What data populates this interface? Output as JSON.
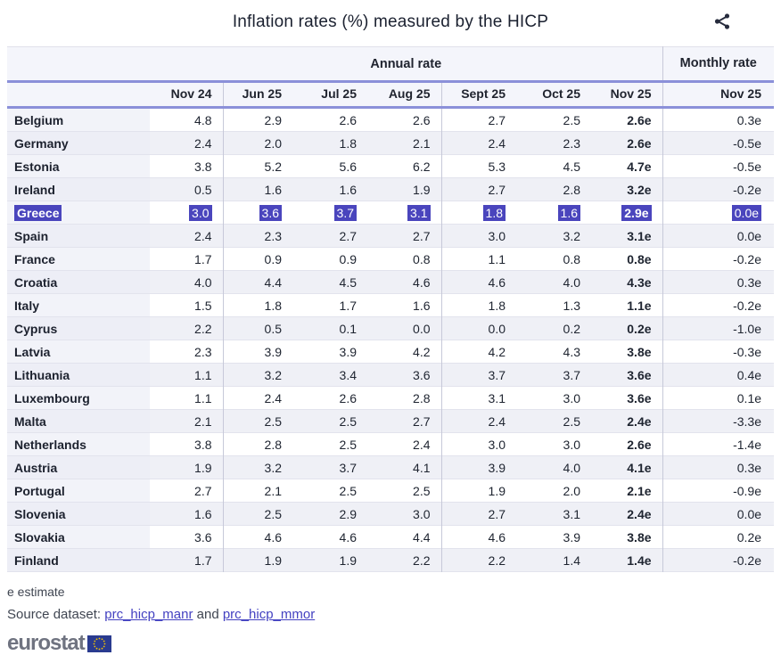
{
  "title": "Inflation rates (%) measured by the HICP",
  "table": {
    "group_annual": "Annual rate",
    "group_monthly": "Monthly rate",
    "columns": [
      "Nov 24",
      "Jun 25",
      "Jul 25",
      "Aug 25",
      "Sept 25",
      "Oct 25",
      "Nov 25"
    ],
    "monthly_column": "Nov 25",
    "rows": [
      {
        "country": "Belgium",
        "values": [
          "4.8",
          "2.9",
          "2.6",
          "2.6",
          "2.7",
          "2.5",
          "2.6e"
        ],
        "monthly": "0.3e",
        "highlighted": false
      },
      {
        "country": "Germany",
        "values": [
          "2.4",
          "2.0",
          "1.8",
          "2.1",
          "2.4",
          "2.3",
          "2.6e"
        ],
        "monthly": "-0.5e",
        "highlighted": false
      },
      {
        "country": "Estonia",
        "values": [
          "3.8",
          "5.2",
          "5.6",
          "6.2",
          "5.3",
          "4.5",
          "4.7e"
        ],
        "monthly": "-0.5e",
        "highlighted": false
      },
      {
        "country": "Ireland",
        "values": [
          "0.5",
          "1.6",
          "1.6",
          "1.9",
          "2.7",
          "2.8",
          "3.2e"
        ],
        "monthly": "-0.2e",
        "highlighted": false
      },
      {
        "country": "Greece",
        "values": [
          "3.0",
          "3.6",
          "3.7",
          "3.1",
          "1.8",
          "1.6",
          "2.9e"
        ],
        "monthly": "0.0e",
        "highlighted": true
      },
      {
        "country": "Spain",
        "values": [
          "2.4",
          "2.3",
          "2.7",
          "2.7",
          "3.0",
          "3.2",
          "3.1e"
        ],
        "monthly": "0.0e",
        "highlighted": false
      },
      {
        "country": "France",
        "values": [
          "1.7",
          "0.9",
          "0.9",
          "0.8",
          "1.1",
          "0.8",
          "0.8e"
        ],
        "monthly": "-0.2e",
        "highlighted": false
      },
      {
        "country": "Croatia",
        "values": [
          "4.0",
          "4.4",
          "4.5",
          "4.6",
          "4.6",
          "4.0",
          "4.3e"
        ],
        "monthly": "0.3e",
        "highlighted": false
      },
      {
        "country": "Italy",
        "values": [
          "1.5",
          "1.8",
          "1.7",
          "1.6",
          "1.8",
          "1.3",
          "1.1e"
        ],
        "monthly": "-0.2e",
        "highlighted": false
      },
      {
        "country": "Cyprus",
        "values": [
          "2.2",
          "0.5",
          "0.1",
          "0.0",
          "0.0",
          "0.2",
          "0.2e"
        ],
        "monthly": "-1.0e",
        "highlighted": false
      },
      {
        "country": "Latvia",
        "values": [
          "2.3",
          "3.9",
          "3.9",
          "4.2",
          "4.2",
          "4.3",
          "3.8e"
        ],
        "monthly": "-0.3e",
        "highlighted": false
      },
      {
        "country": "Lithuania",
        "values": [
          "1.1",
          "3.2",
          "3.4",
          "3.6",
          "3.7",
          "3.7",
          "3.6e"
        ],
        "monthly": "0.4e",
        "highlighted": false
      },
      {
        "country": "Luxembourg",
        "values": [
          "1.1",
          "2.4",
          "2.6",
          "2.8",
          "3.1",
          "3.0",
          "3.6e"
        ],
        "monthly": "0.1e",
        "highlighted": false
      },
      {
        "country": "Malta",
        "values": [
          "2.1",
          "2.5",
          "2.5",
          "2.7",
          "2.4",
          "2.5",
          "2.4e"
        ],
        "monthly": "-3.3e",
        "highlighted": false
      },
      {
        "country": "Netherlands",
        "values": [
          "3.8",
          "2.8",
          "2.5",
          "2.4",
          "3.0",
          "3.0",
          "2.6e"
        ],
        "monthly": "-1.4e",
        "highlighted": false
      },
      {
        "country": "Austria",
        "values": [
          "1.9",
          "3.2",
          "3.7",
          "4.1",
          "3.9",
          "4.0",
          "4.1e"
        ],
        "monthly": "0.3e",
        "highlighted": false
      },
      {
        "country": "Portugal",
        "values": [
          "2.7",
          "2.1",
          "2.5",
          "2.5",
          "1.9",
          "2.0",
          "2.1e"
        ],
        "monthly": "-0.9e",
        "highlighted": false
      },
      {
        "country": "Slovenia",
        "values": [
          "1.6",
          "2.5",
          "2.9",
          "3.0",
          "2.7",
          "3.1",
          "2.4e"
        ],
        "monthly": "0.0e",
        "highlighted": false
      },
      {
        "country": "Slovakia",
        "values": [
          "3.6",
          "4.6",
          "4.6",
          "4.4",
          "4.6",
          "3.9",
          "3.8e"
        ],
        "monthly": "0.2e",
        "highlighted": false
      },
      {
        "country": "Finland",
        "values": [
          "1.7",
          "1.9",
          "1.9",
          "2.2",
          "2.2",
          "1.4",
          "1.4e"
        ],
        "monthly": "-0.2e",
        "highlighted": false
      }
    ]
  },
  "footer": {
    "note": "e estimate",
    "source_prefix": "Source dataset:",
    "link_manr": "prc_hicp_manr",
    "conjunction": "and",
    "link_mmor": "prc_hicp_mmor",
    "logo_text": "eurostat"
  },
  "colors": {
    "highlight": "#4a45bd",
    "accent-line": "#8b90d9",
    "header-bg": "#f4f5fb",
    "stripe": "#eff0f6",
    "country-bg": "#f2f3f9",
    "link": "#4341c1",
    "flag-blue": "#2a3b8f",
    "flag-gold": "#f5c400",
    "text": "#1e2430"
  }
}
